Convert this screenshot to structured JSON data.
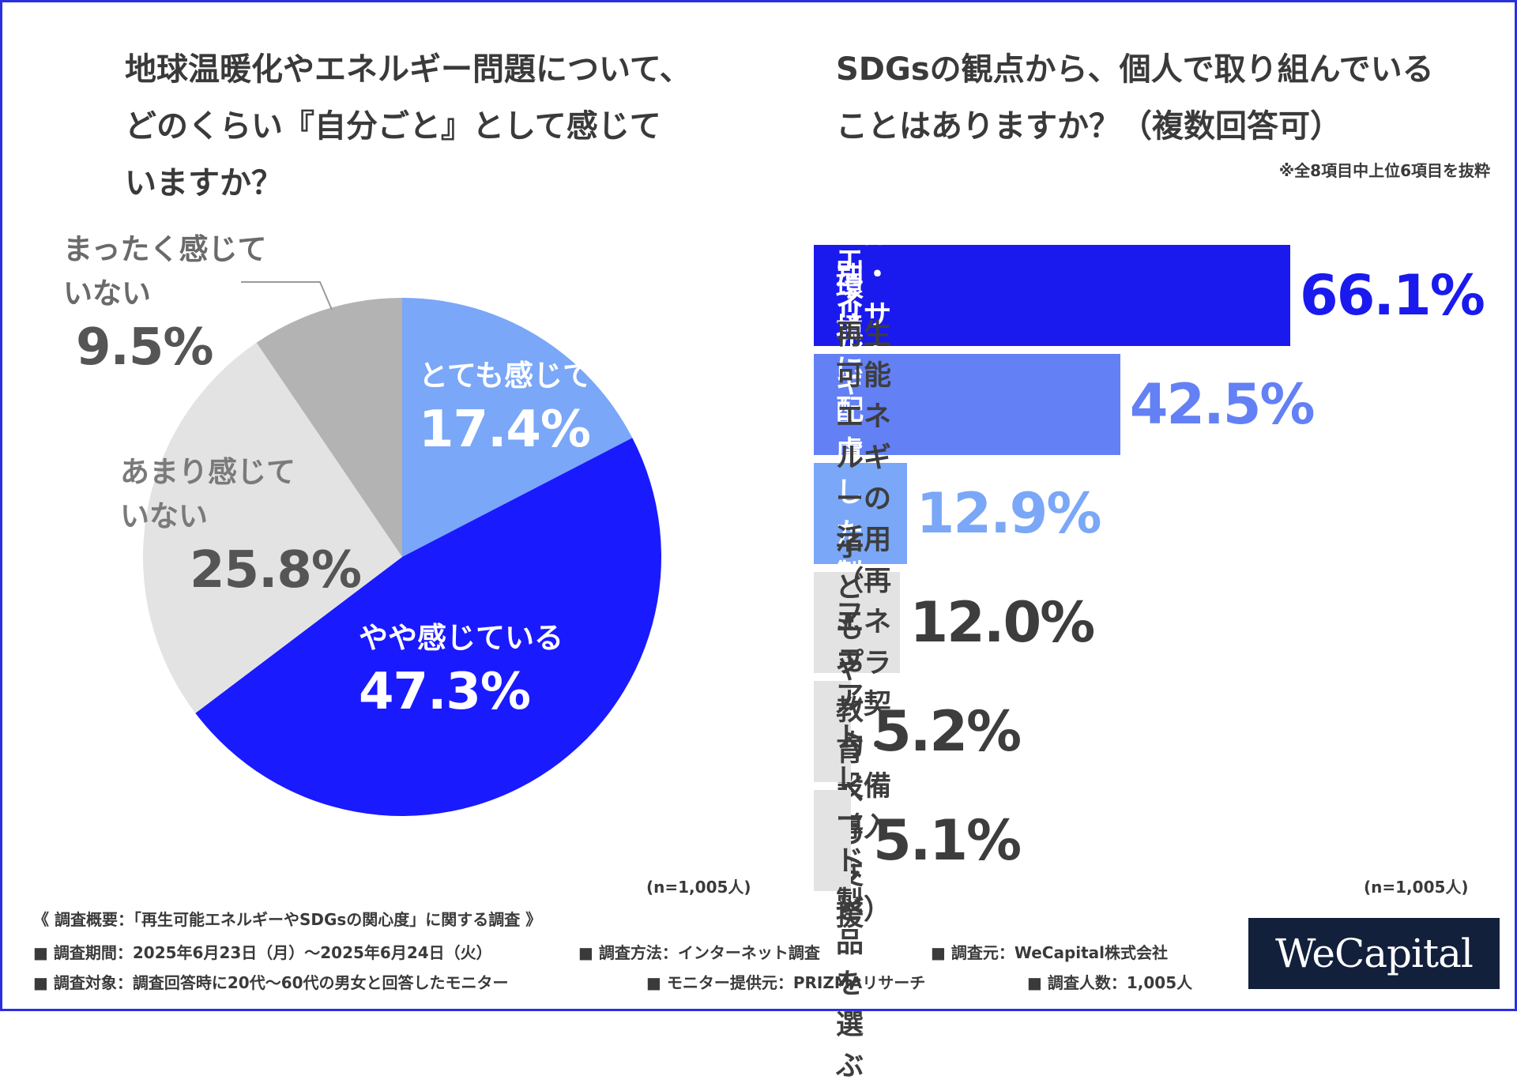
{
  "left_title": "地球温暖化やエネルギー問題について、\nどのくらい『自分ごと』として感じて\nいますか？",
  "right_title": "SDGsの観点から、個人で取り組んでいる\nことはありますか？（複数回答可）",
  "right_note": "※全8項目中上位6項目を抜粋",
  "n_left": "(n=1,005人)",
  "n_right": "(n=1,005人)",
  "chart_data": [
    {
      "type": "pie",
      "title": "地球温暖化やエネルギー問題について、どのくらい『自分ごと』として感じていますか？",
      "slices": [
        {
          "label": "とても感じている",
          "value": 17.4,
          "display": "17.4%",
          "color": "#7aa7f7"
        },
        {
          "label": "やや感じている",
          "value": 47.3,
          "display": "47.3%",
          "color": "#1a1aff"
        },
        {
          "label": "あまり感じて\nいない",
          "value": 25.8,
          "display": "25.8%",
          "color": "#e3e3e3"
        },
        {
          "label": "まったく感じて\nいない",
          "value": 9.5,
          "display": "9.5%",
          "color": "#b3b3b3"
        }
      ]
    },
    {
      "type": "bar",
      "orientation": "horizontal",
      "title": "SDGsの観点から、個人で取り組んでいることはありますか？（複数回答可）",
      "xlim": [
        0,
        66.1
      ],
      "bars": [
        {
          "label": "ごみの分別・リサイクル",
          "value": 66.1,
          "display": "66.1%",
          "color": "#1a1aee",
          "value_color": "#1a1aee",
          "label_color": "#ffffff"
        },
        {
          "label": "エネルギーの節約",
          "value": 42.5,
          "display": "42.5%",
          "color": "#6380f5",
          "value_color": "#6380f5",
          "label_color": "#ffffff"
        },
        {
          "label": "環境に配慮した\n製品の購入",
          "value": 12.9,
          "display": "12.9%",
          "color": "#7aa7f7",
          "value_color": "#7aa7f7",
          "label_color": "#ffffff"
        },
        {
          "label": "再生可能エネルギーの活用\n（再エネプラン契約・設備導入など）",
          "value": 12.0,
          "display": "12.0%",
          "color": "#e3e3e3",
          "value_color": "#3d3d3d",
          "label_color": "#3d3d3d"
        },
        {
          "label": "子どもや教育への\n支援",
          "value": 5.2,
          "display": "5.2%",
          "color": "#e3e3e3",
          "value_color": "#3d3d3d",
          "label_color": "#3d3d3d"
        },
        {
          "label": "フェアトレード製品を\n選ぶ",
          "value": 5.1,
          "display": "5.1%",
          "color": "#e3e3e3",
          "value_color": "#3d3d3d",
          "label_color": "#3d3d3d"
        }
      ]
    }
  ],
  "footer": {
    "heading": "《 調査概要：「再生可能エネルギーやSDGsの関心度」に関する調査 》",
    "period": "■ 調査期間：2025年6月23日（月）～2025年6月24日（火）",
    "method": "■ 調査方法：インターネット調査",
    "org": "■ 調査元：WeCapital株式会社",
    "target": "■ 調査対象：調査回答時に20代～60代の男女と回答したモニター",
    "provider": "■ モニター提供元：PRIZMAリサーチ",
    "count": "■ 調査人数：1,005人"
  },
  "logo_text": "WeCapital"
}
